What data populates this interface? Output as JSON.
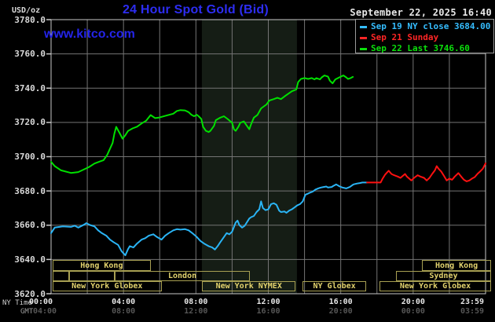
{
  "header": {
    "units_label": "USD/oz",
    "title": "24 Hour Spot Gold (Bid)",
    "datetime": "September 22, 2025 16:40",
    "watermark": "www.kitco.com"
  },
  "legend": {
    "items": [
      {
        "label": "Sep 19 NY close 3684.00",
        "color": "#35bdff"
      },
      {
        "label": "Sep 21 Sunday",
        "color": "#ff2626"
      },
      {
        "label": "Sep 22 Last 3746.60",
        "color": "#0ce00c"
      }
    ]
  },
  "axes": {
    "y_labels": [
      "3780.0",
      "3760.0",
      "3740.0",
      "3720.0",
      "3700.0",
      "3680.0",
      "3660.0",
      "3640.0",
      "3620.0"
    ],
    "y_values": [
      3780,
      3760,
      3740,
      3720,
      3700,
      3680,
      3660,
      3640,
      3620
    ],
    "ny_caption": "NY Time",
    "gmt_caption": "GMT",
    "ny_ticks": [
      {
        "h": 0,
        "t": "00:00"
      },
      {
        "h": 4,
        "t": "04:00"
      },
      {
        "h": 8,
        "t": "08:00"
      },
      {
        "h": 12,
        "t": "12:00"
      },
      {
        "h": 16,
        "t": "16:00"
      },
      {
        "h": 20,
        "t": "20:00"
      },
      {
        "h": 23.98,
        "t": "23:59"
      }
    ],
    "gmt_ticks": [
      {
        "h": 0,
        "t": "04:00"
      },
      {
        "h": 4,
        "t": "08:00"
      },
      {
        "h": 8,
        "t": "12:00"
      },
      {
        "h": 12,
        "t": "16:00"
      },
      {
        "h": 16,
        "t": "20:00"
      },
      {
        "h": 20,
        "t": "00:00"
      },
      {
        "h": 23.98,
        "t": "03:59"
      }
    ]
  },
  "colors": {
    "background": "#000000",
    "grid": "#747474",
    "border": "#c9c9c9",
    "band": "#151d15",
    "session_border": "#a79f52",
    "session_text": "#e2d26d"
  },
  "sessions": {
    "rows": [
      {
        "top": 331,
        "height": 14,
        "boxes": [
          {
            "label": "Hong Kong",
            "start_h": 0.09,
            "end_h": 5.5
          },
          {
            "label": "Hong Kong",
            "start_h": 20.5,
            "end_h": 24.3
          }
        ]
      },
      {
        "top": 345,
        "height": 13,
        "boxes": [
          {
            "label": "",
            "start_h": 0.09,
            "end_h": 1.0
          },
          {
            "label": "",
            "start_h": 1.0,
            "end_h": 3.5
          },
          {
            "label": "London",
            "start_h": 3.5,
            "end_h": 11.0
          },
          {
            "label": "Sydney",
            "start_h": 19.05,
            "end_h": 24.3
          }
        ]
      },
      {
        "top": 358,
        "height": 13,
        "boxes": [
          {
            "label": "New York Globex",
            "start_h": 0.09,
            "end_h": 6.1
          },
          {
            "label": "New York NYMEX",
            "start_h": 8.35,
            "end_h": 13.5
          },
          {
            "label": "NY Globex",
            "start_h": 13.9,
            "end_h": 17.4
          },
          {
            "label": "New York Globex",
            "start_h": 18.15,
            "end_h": 24.3
          }
        ]
      }
    ]
  },
  "chart_data": {
    "type": "line",
    "title": "24 Hour Spot Gold (Bid)",
    "x_unit": "hours, NY time",
    "y_unit": "USD/oz",
    "xlim": [
      0,
      24
    ],
    "ylim": [
      3620,
      3780
    ],
    "grid": {
      "x_step_h": 2,
      "y_step": 20,
      "on": true
    },
    "nymex_band_h": [
      8.33,
      13.58
    ],
    "last_price": 3746.6,
    "prev_close": 3684.0,
    "series": [
      {
        "name": "Sep 19 NY close",
        "color": "#2ab4f5",
        "points": [
          [
            0,
            3655.4
          ],
          [
            0.2,
            3658.6
          ],
          [
            0.65,
            3659.3
          ],
          [
            1.1,
            3659.0
          ],
          [
            1.3,
            3659.7
          ],
          [
            1.5,
            3658.6
          ],
          [
            1.85,
            3660.5
          ],
          [
            1.95,
            3661.2
          ],
          [
            2.15,
            3660.1
          ],
          [
            2.4,
            3659.3
          ],
          [
            2.6,
            3657.0
          ],
          [
            2.8,
            3655.4
          ],
          [
            3.05,
            3653.9
          ],
          [
            3.25,
            3651.6
          ],
          [
            3.45,
            3650.1
          ],
          [
            3.7,
            3648.5
          ],
          [
            3.9,
            3644.7
          ],
          [
            4.1,
            3642.4
          ],
          [
            4.25,
            3646.0
          ],
          [
            4.35,
            3647.8
          ],
          [
            4.55,
            3647.0
          ],
          [
            4.75,
            3649.3
          ],
          [
            5.0,
            3651.6
          ],
          [
            5.2,
            3652.4
          ],
          [
            5.4,
            3653.9
          ],
          [
            5.65,
            3654.7
          ],
          [
            5.85,
            3653.1
          ],
          [
            6.1,
            3651.6
          ],
          [
            6.3,
            3653.9
          ],
          [
            6.5,
            3655.4
          ],
          [
            6.75,
            3657.0
          ],
          [
            6.95,
            3657.7
          ],
          [
            7.15,
            3657.4
          ],
          [
            7.4,
            3657.7
          ],
          [
            7.6,
            3657.0
          ],
          [
            7.8,
            3655.4
          ],
          [
            8.05,
            3653.1
          ],
          [
            8.25,
            3650.8
          ],
          [
            8.45,
            3649.3
          ],
          [
            8.7,
            3647.8
          ],
          [
            8.9,
            3647.0
          ],
          [
            9.05,
            3645.8
          ],
          [
            9.2,
            3647.8
          ],
          [
            9.35,
            3650.1
          ],
          [
            9.55,
            3653.1
          ],
          [
            9.7,
            3655.4
          ],
          [
            9.85,
            3654.7
          ],
          [
            10.0,
            3656.2
          ],
          [
            10.2,
            3661.6
          ],
          [
            10.3,
            3662.7
          ],
          [
            10.4,
            3660.1
          ],
          [
            10.55,
            3658.6
          ],
          [
            10.7,
            3659.7
          ],
          [
            10.95,
            3663.9
          ],
          [
            11.05,
            3664.7
          ],
          [
            11.2,
            3665.4
          ],
          [
            11.35,
            3667.7
          ],
          [
            11.5,
            3669.3
          ],
          [
            11.6,
            3673.9
          ],
          [
            11.7,
            3670.0
          ],
          [
            11.85,
            3668.8
          ],
          [
            12.0,
            3669.3
          ],
          [
            12.15,
            3672.3
          ],
          [
            12.3,
            3672.8
          ],
          [
            12.45,
            3671.9
          ],
          [
            12.6,
            3668.5
          ],
          [
            12.7,
            3667.7
          ],
          [
            12.9,
            3668.0
          ],
          [
            13.0,
            3667.2
          ],
          [
            13.15,
            3668.5
          ],
          [
            13.3,
            3669.3
          ],
          [
            13.45,
            3670.4
          ],
          [
            13.6,
            3671.6
          ],
          [
            13.75,
            3672.3
          ],
          [
            13.9,
            3673.9
          ],
          [
            14.05,
            3677.8
          ],
          [
            14.2,
            3678.5
          ],
          [
            14.3,
            3679.0
          ],
          [
            14.45,
            3679.6
          ],
          [
            14.6,
            3680.8
          ],
          [
            14.75,
            3681.5
          ],
          [
            14.9,
            3682.0
          ],
          [
            15.05,
            3682.3
          ],
          [
            15.2,
            3682.6
          ],
          [
            15.3,
            3682.0
          ],
          [
            15.5,
            3682.3
          ],
          [
            15.6,
            3683.0
          ],
          [
            15.75,
            3683.8
          ],
          [
            15.95,
            3682.6
          ],
          [
            16.1,
            3682.0
          ],
          [
            16.3,
            3681.5
          ],
          [
            16.5,
            3682.3
          ],
          [
            16.7,
            3683.8
          ],
          [
            16.9,
            3684.3
          ],
          [
            17.05,
            3684.6
          ],
          [
            17.2,
            3684.9
          ],
          [
            17.45,
            3684.9
          ]
        ]
      },
      {
        "name": "Sep 21 Sunday",
        "color": "#ff1111",
        "points": [
          [
            17.45,
            3684.9
          ],
          [
            18.2,
            3684.9
          ],
          [
            18.3,
            3687.0
          ],
          [
            18.45,
            3689.5
          ],
          [
            18.55,
            3690.7
          ],
          [
            18.65,
            3691.8
          ],
          [
            18.8,
            3689.9
          ],
          [
            18.95,
            3689.2
          ],
          [
            19.15,
            3688.4
          ],
          [
            19.3,
            3687.6
          ],
          [
            19.55,
            3689.9
          ],
          [
            19.65,
            3688.4
          ],
          [
            19.9,
            3686.1
          ],
          [
            20.05,
            3687.6
          ],
          [
            20.25,
            3689.2
          ],
          [
            20.4,
            3688.4
          ],
          [
            20.6,
            3687.6
          ],
          [
            20.75,
            3686.1
          ],
          [
            20.9,
            3687.6
          ],
          [
            21.05,
            3689.9
          ],
          [
            21.2,
            3692.0
          ],
          [
            21.3,
            3694.5
          ],
          [
            21.4,
            3693.0
          ],
          [
            21.55,
            3691.4
          ],
          [
            21.7,
            3688.8
          ],
          [
            21.85,
            3686.1
          ],
          [
            22.0,
            3687.2
          ],
          [
            22.15,
            3686.5
          ],
          [
            22.3,
            3688.4
          ],
          [
            22.5,
            3690.4
          ],
          [
            22.65,
            3688.4
          ],
          [
            22.8,
            3686.5
          ],
          [
            22.95,
            3685.6
          ],
          [
            23.1,
            3686.1
          ],
          [
            23.25,
            3687.2
          ],
          [
            23.4,
            3688.1
          ],
          [
            23.55,
            3689.9
          ],
          [
            23.7,
            3691.4
          ],
          [
            23.85,
            3693.0
          ],
          [
            23.95,
            3695.0
          ],
          [
            24.0,
            3696.1
          ]
        ]
      },
      {
        "name": "Sep 22 Last",
        "color": "#00e000",
        "points": [
          [
            0,
            3697.0
          ],
          [
            0.2,
            3694.5
          ],
          [
            0.55,
            3692.0
          ],
          [
            1.1,
            3690.5
          ],
          [
            1.5,
            3691.0
          ],
          [
            1.8,
            3692.5
          ],
          [
            2.1,
            3694.0
          ],
          [
            2.4,
            3696.0
          ],
          [
            2.7,
            3697.2
          ],
          [
            2.9,
            3698.0
          ],
          [
            3.1,
            3701.0
          ],
          [
            3.4,
            3708.0
          ],
          [
            3.5,
            3713.5
          ],
          [
            3.6,
            3717.4
          ],
          [
            3.8,
            3713.5
          ],
          [
            3.95,
            3710.5
          ],
          [
            4.1,
            3712.5
          ],
          [
            4.25,
            3715.0
          ],
          [
            4.5,
            3716.5
          ],
          [
            4.75,
            3717.5
          ],
          [
            5.0,
            3719.4
          ],
          [
            5.25,
            3721.0
          ],
          [
            5.5,
            3724.3
          ],
          [
            5.75,
            3722.5
          ],
          [
            5.95,
            3722.8
          ],
          [
            6.2,
            3723.5
          ],
          [
            6.5,
            3724.4
          ],
          [
            6.75,
            3725.1
          ],
          [
            6.95,
            3726.7
          ],
          [
            7.15,
            3727.2
          ],
          [
            7.4,
            3727.0
          ],
          [
            7.6,
            3726.0
          ],
          [
            7.75,
            3724.5
          ],
          [
            7.9,
            3723.6
          ],
          [
            8.05,
            3724.5
          ],
          [
            8.15,
            3723.6
          ],
          [
            8.3,
            3722.0
          ],
          [
            8.4,
            3717.4
          ],
          [
            8.55,
            3715.1
          ],
          [
            8.7,
            3714.4
          ],
          [
            8.8,
            3715.1
          ],
          [
            9.0,
            3718.0
          ],
          [
            9.1,
            3721.3
          ],
          [
            9.35,
            3722.8
          ],
          [
            9.55,
            3723.6
          ],
          [
            9.75,
            3722.0
          ],
          [
            10.0,
            3719.8
          ],
          [
            10.1,
            3716.0
          ],
          [
            10.2,
            3715.1
          ],
          [
            10.35,
            3717.5
          ],
          [
            10.45,
            3719.8
          ],
          [
            10.65,
            3720.6
          ],
          [
            10.75,
            3719.0
          ],
          [
            10.95,
            3716.0
          ],
          [
            11.05,
            3719.0
          ],
          [
            11.2,
            3722.8
          ],
          [
            11.4,
            3724.4
          ],
          [
            11.6,
            3728.2
          ],
          [
            11.9,
            3730.5
          ],
          [
            12.05,
            3732.8
          ],
          [
            12.3,
            3733.6
          ],
          [
            12.5,
            3734.4
          ],
          [
            12.7,
            3733.6
          ],
          [
            12.95,
            3735.6
          ],
          [
            13.1,
            3736.7
          ],
          [
            13.3,
            3738.2
          ],
          [
            13.55,
            3739.3
          ],
          [
            13.65,
            3743.6
          ],
          [
            13.8,
            3745.4
          ],
          [
            14.0,
            3745.9
          ],
          [
            14.2,
            3745.4
          ],
          [
            14.4,
            3745.9
          ],
          [
            14.55,
            3745.1
          ],
          [
            14.65,
            3745.9
          ],
          [
            14.85,
            3745.1
          ],
          [
            14.95,
            3746.3
          ],
          [
            15.1,
            3747.4
          ],
          [
            15.3,
            3746.7
          ],
          [
            15.4,
            3744.4
          ],
          [
            15.55,
            3742.8
          ],
          [
            15.7,
            3745.1
          ],
          [
            15.85,
            3745.9
          ],
          [
            16.0,
            3746.7
          ],
          [
            16.15,
            3747.4
          ],
          [
            16.3,
            3746.3
          ],
          [
            16.4,
            3745.4
          ],
          [
            16.55,
            3745.9
          ],
          [
            16.67,
            3746.6
          ]
        ]
      }
    ]
  }
}
